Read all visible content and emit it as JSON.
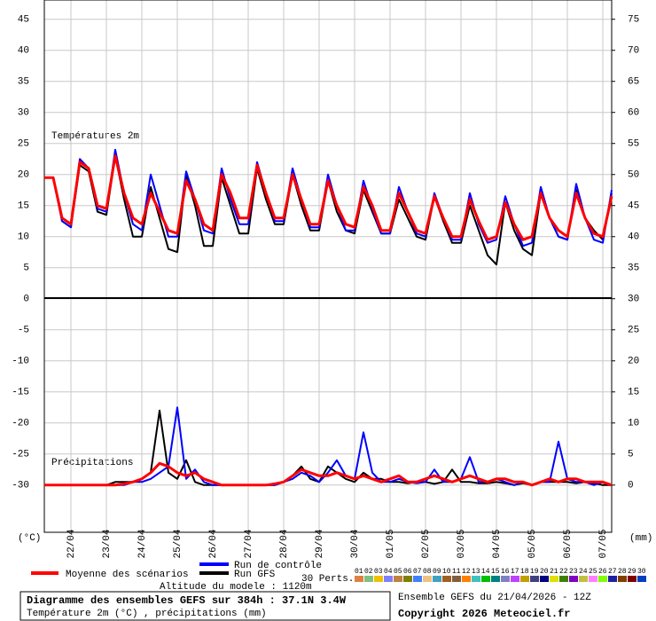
{
  "chart_data": {
    "type": "line",
    "panel_labels": [
      "Températures 2m",
      "Précipitations"
    ],
    "y_unit_label": "(°C)",
    "y2_unit_label": "(mm)",
    "categories": [
      null,
      null,
      null,
      "22/04",
      null,
      null,
      null,
      "23/04",
      null,
      null,
      null,
      "24/04",
      null,
      null,
      null,
      "25/04",
      null,
      null,
      null,
      "26/04",
      null,
      null,
      null,
      "27/04",
      null,
      null,
      null,
      "28/04",
      null,
      null,
      null,
      "29/04",
      null,
      null,
      null,
      "30/04",
      null,
      null,
      null,
      "01/05",
      null,
      null,
      null,
      "02/05",
      null,
      null,
      null,
      "03/05",
      null,
      null,
      null,
      "04/05",
      null,
      null,
      null,
      "05/05",
      null,
      null,
      null,
      "06/05",
      null,
      null,
      null,
      "07/05",
      null
    ],
    "ylim": [
      -37.6,
      48.1
    ],
    "yticks": [
      45,
      40,
      35,
      30,
      25,
      20,
      15,
      10,
      5,
      0,
      -5,
      -10,
      -15,
      -20,
      -25,
      -30
    ],
    "y2lim": [
      -7.6,
      78.1
    ],
    "y2ticks": [
      75,
      70,
      65,
      60,
      55,
      50,
      45,
      40,
      35,
      30,
      25,
      20,
      15,
      10,
      5,
      0
    ],
    "temperature_axis": "y",
    "precipitation_axis": "y2",
    "grid": true,
    "series": [
      {
        "name": "Moyenne des scénarios",
        "color": "#ff0000",
        "temperature": [
          19.5,
          19.5,
          13,
          12,
          22,
          21,
          15,
          14.5,
          23,
          17,
          13,
          12,
          17,
          14,
          11,
          10.5,
          19,
          16,
          12,
          11,
          20,
          17,
          13,
          13,
          21.5,
          17,
          13,
          13,
          20,
          16,
          12,
          12,
          19,
          15,
          12,
          11.5,
          18,
          15,
          11,
          11,
          17,
          14,
          11,
          10.5,
          16.5,
          13,
          10,
          10,
          16,
          12.5,
          9.5,
          10,
          15.5,
          12,
          9.5,
          10,
          17,
          13,
          11,
          10,
          17,
          13,
          10.5,
          10,
          16.5
        ],
        "precipitation": [
          0,
          0,
          0,
          0,
          0,
          0,
          0,
          0,
          0,
          0.2,
          0.5,
          1,
          2,
          3.5,
          3,
          2,
          1.5,
          2,
          1,
          0.5,
          0,
          0,
          0,
          0,
          0,
          0,
          0.2,
          0.5,
          1.5,
          2.5,
          2,
          1.5,
          1.5,
          2,
          1.5,
          1,
          1.5,
          1,
          0.5,
          1,
          1.5,
          0.5,
          0.5,
          1,
          1.5,
          1,
          0.5,
          1,
          1.5,
          1,
          0.5,
          1,
          1,
          0.5,
          0.5,
          0,
          0.5,
          1,
          0.5,
          1,
          1,
          0.5,
          0.5,
          0.5,
          0
        ]
      },
      {
        "name": "Run de contrôle",
        "color": "#0000ff",
        "temperature": [
          19.5,
          19.5,
          12.5,
          11.5,
          22.5,
          21,
          14.5,
          14,
          24,
          17,
          12,
          11,
          20,
          15,
          10,
          10,
          20.5,
          16,
          11,
          10.5,
          21,
          16,
          12,
          12,
          22,
          17,
          12.5,
          12.5,
          21,
          16,
          11.5,
          11.5,
          20,
          15,
          11,
          11,
          19,
          14.5,
          10.5,
          10.5,
          18,
          14,
          10.5,
          10,
          17,
          13,
          9.5,
          9.5,
          17,
          12,
          9,
          9.5,
          16.5,
          12,
          8.5,
          9,
          18,
          13,
          10,
          9.5,
          18.5,
          13,
          9.5,
          9,
          17.5
        ],
        "precipitation": [
          0,
          0,
          0,
          0,
          0,
          0,
          0,
          0,
          0,
          0,
          0.5,
          0.5,
          1,
          2,
          3,
          12.5,
          1,
          2.5,
          0.5,
          0,
          0,
          0,
          0,
          0,
          0,
          0,
          0,
          0.5,
          1,
          2,
          1.5,
          0.5,
          2,
          4,
          1.5,
          1,
          8.5,
          2,
          0.5,
          0.5,
          1,
          0.5,
          0.3,
          0.5,
          2.5,
          0.5,
          0.5,
          1,
          4.5,
          0.5,
          0.5,
          1,
          0.5,
          0,
          0.5,
          0,
          0.5,
          0.5,
          7,
          1,
          0.5,
          0.5,
          0,
          0.5,
          0
        ]
      },
      {
        "name": "Run GFS",
        "color": "#000000",
        "temperature": [
          19.5,
          19.5,
          12.5,
          11.5,
          21.5,
          20.5,
          14,
          13.5,
          23,
          16,
          10,
          10,
          18,
          13,
          8,
          7.5,
          20,
          15,
          8.5,
          8.5,
          19.5,
          15,
          10.5,
          10.5,
          21,
          16,
          12,
          12,
          20,
          15,
          11,
          11,
          19,
          14,
          11,
          10.5,
          17.5,
          14,
          10.5,
          10.5,
          16,
          13,
          10,
          9.5,
          16.5,
          12.5,
          9,
          9,
          15,
          11,
          7,
          5.5,
          15.5,
          11,
          8,
          7,
          17,
          13,
          10,
          9.5,
          17.5,
          13,
          11,
          9.5,
          17
        ],
        "precipitation": [
          0,
          0,
          0,
          0,
          0,
          0,
          0,
          0,
          0.5,
          0.5,
          0.5,
          1,
          2,
          12,
          2,
          1,
          4,
          0.5,
          0,
          0,
          0,
          0,
          0,
          0,
          0,
          0,
          0,
          0.5,
          1.5,
          3,
          1,
          0.5,
          3,
          2,
          1,
          0.5,
          2,
          1,
          1,
          0.5,
          0.5,
          0.3,
          0.5,
          0.5,
          0.2,
          0.5,
          2.5,
          0.5,
          0.5,
          0.3,
          0.3,
          0.5,
          0.3,
          0,
          0.3,
          0,
          0.5,
          0.5,
          0.5,
          0.5,
          0.3,
          0.5,
          0.3,
          0,
          0
        ]
      }
    ],
    "perturbations": {
      "label": "30 Perts.",
      "members": [
        {
          "name": "01",
          "color": "#e08040"
        },
        {
          "name": "02",
          "color": "#80c080"
        },
        {
          "name": "03",
          "color": "#f0c000"
        },
        {
          "name": "04",
          "color": "#8080ff"
        },
        {
          "name": "05",
          "color": "#c08040"
        },
        {
          "name": "06",
          "color": "#808000"
        },
        {
          "name": "07",
          "color": "#4080ff"
        },
        {
          "name": "08",
          "color": "#f0c080"
        },
        {
          "name": "09",
          "color": "#40a0c0"
        },
        {
          "name": "10",
          "color": "#a06020"
        },
        {
          "name": "11",
          "color": "#806040"
        },
        {
          "name": "12",
          "color": "#ff8000"
        },
        {
          "name": "13",
          "color": "#40c0c0"
        },
        {
          "name": "14",
          "color": "#00c000"
        },
        {
          "name": "15",
          "color": "#008080"
        },
        {
          "name": "16",
          "color": "#8080c0"
        },
        {
          "name": "17",
          "color": "#c040ff"
        },
        {
          "name": "18",
          "color": "#c0a000"
        },
        {
          "name": "19",
          "color": "#404080"
        },
        {
          "name": "20",
          "color": "#000080"
        },
        {
          "name": "21",
          "color": "#e0e000"
        },
        {
          "name": "22",
          "color": "#408000"
        },
        {
          "name": "23",
          "color": "#8000c0"
        },
        {
          "name": "24",
          "color": "#c0c040"
        },
        {
          "name": "25",
          "color": "#ff80ff"
        },
        {
          "name": "26",
          "color": "#80ff00"
        },
        {
          "name": "27",
          "color": "#2020a0"
        },
        {
          "name": "28",
          "color": "#804000"
        },
        {
          "name": "29",
          "color": "#800000"
        },
        {
          "name": "30",
          "color": "#0040c0"
        }
      ]
    },
    "altitude": "Altitude du modele : 1120m",
    "title": "Diagramme des ensembles GEFS sur 384h : 37.1N 3.4W",
    "subtitle": "Température 2m (°C) , précipitations (mm)",
    "run_info": "Ensemble GEFS du 21/04/2026 - 12Z",
    "copyright": "Copyright 2026 Meteociel.fr"
  }
}
